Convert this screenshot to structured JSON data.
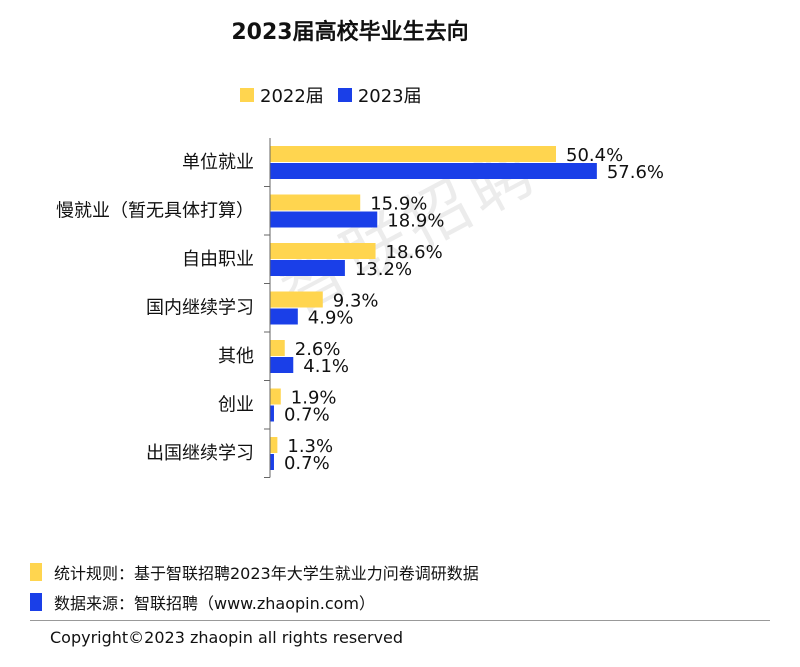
{
  "chart_data": {
    "type": "bar",
    "orientation": "horizontal",
    "title": "2023届高校毕业生去向",
    "categories": [
      "单位就业",
      "慢就业（暂无具体打算）",
      "自由职业",
      "国内继续学习",
      "其他",
      "创业",
      "出国继续学习"
    ],
    "series": [
      {
        "name": "2022届",
        "color": "#FFD54F",
        "values": [
          50.4,
          15.9,
          18.6,
          9.3,
          2.6,
          1.9,
          1.3
        ],
        "labels": [
          "50.4%",
          "15.9%",
          "18.6%",
          "9.3%",
          "2.6%",
          "1.9%",
          "1.3%"
        ]
      },
      {
        "name": "2023届",
        "color": "#1A3FE8",
        "values": [
          57.6,
          18.9,
          13.2,
          4.9,
          4.1,
          0.7,
          0.7
        ],
        "labels": [
          "57.6%",
          "18.9%",
          "13.2%",
          "4.9%",
          "4.1%",
          "0.7%",
          "0.7%"
        ]
      }
    ],
    "xlim": [
      0,
      60
    ],
    "legend_position": "top"
  },
  "watermark": "智联招聘",
  "notes": [
    {
      "text": "统计规则：基于智联招聘2023年大学生就业力问卷调研数据",
      "color": "#FFD54F"
    },
    {
      "text": "数据来源：智联招聘（www.zhaopin.com）",
      "color": "#1A3FE8"
    }
  ],
  "copyright": "Copyright©2023 zhaopin all rights reserved"
}
